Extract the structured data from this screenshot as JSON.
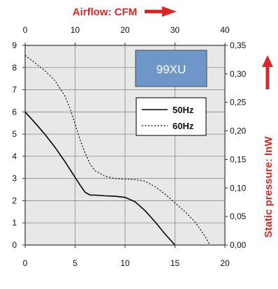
{
  "colors": {
    "plot_background": "#e8e8e8",
    "grid": "#888888",
    "axis_title": "#d42a2a",
    "arrow": "#d42a2a",
    "model_box": "#6e97c8",
    "series": "#000000"
  },
  "chart_data": {
    "type": "line",
    "model_label": "99XU",
    "grid": true,
    "legend_position": "top-right",
    "axes": {
      "bottom": {
        "range": [
          0,
          20
        ],
        "ticks": [
          "0",
          "5",
          "10",
          "15",
          "20"
        ]
      },
      "top": {
        "label": "Airflow: CFM",
        "range": [
          0,
          40
        ],
        "ticks": [
          "0",
          "10",
          "20",
          "30",
          "40"
        ]
      },
      "left": {
        "range": [
          0,
          9
        ],
        "ticks": [
          "0",
          "1",
          "2",
          "3",
          "4",
          "5",
          "6",
          "7",
          "8",
          "9"
        ]
      },
      "right": {
        "label": "Static pressure: InW",
        "range": [
          0,
          0.35
        ],
        "ticks": [
          "0,00",
          "0,05",
          "0,10",
          "0,15",
          "0,20",
          "0,25",
          "0,30",
          "0,35"
        ]
      }
    },
    "series": [
      {
        "name": "50Hz",
        "style": "solid",
        "x": [
          0,
          1,
          2,
          3,
          4,
          5,
          5.5,
          6,
          6.5,
          7,
          8,
          9,
          10,
          11,
          12,
          13,
          14,
          15
        ],
        "y": [
          6.0,
          5.5,
          4.98,
          4.4,
          3.75,
          3.05,
          2.7,
          2.38,
          2.25,
          2.25,
          2.22,
          2.2,
          2.15,
          1.95,
          1.55,
          1.05,
          0.5,
          0.0
        ]
      },
      {
        "name": "60Hz",
        "style": "dotted",
        "x": [
          0,
          1,
          2,
          3,
          4,
          4.5,
          5,
          5.5,
          6,
          6.5,
          7,
          8,
          9,
          10,
          11,
          12,
          13,
          14,
          15,
          16,
          17,
          18,
          18.5
        ],
        "y": [
          8.55,
          8.2,
          7.85,
          7.4,
          6.7,
          6.15,
          5.45,
          4.75,
          4.15,
          3.65,
          3.35,
          3.1,
          3.0,
          2.97,
          2.95,
          2.88,
          2.63,
          2.3,
          1.9,
          1.5,
          1.05,
          0.4,
          0.0
        ]
      }
    ]
  }
}
